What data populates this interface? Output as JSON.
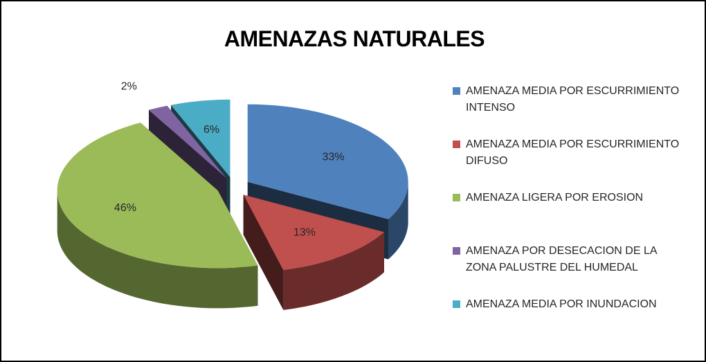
{
  "chart_data": {
    "type": "pie3d",
    "title": "AMENAZAS NATURALES",
    "categories": [
      "AMENAZA MEDIA POR ESCURRIMIENTO INTENSO",
      "AMENAZA MEDIA POR ESCURRIMIENTO DIFUSO",
      "AMENAZA LIGERA POR EROSION",
      "AMENAZA POR DESECACION DE LA ZONA PALUSTRE DEL HUMEDAL",
      "AMENAZA MEDIA POR INUNDACION"
    ],
    "values": [
      33,
      13,
      46,
      2,
      6
    ],
    "value_labels": [
      "33%",
      "13%",
      "46%",
      "2%",
      "6%"
    ],
    "colors": [
      "#4f81bd",
      "#c0504d",
      "#9bbb59",
      "#8064a2",
      "#4bacc6"
    ],
    "legend": "right"
  }
}
